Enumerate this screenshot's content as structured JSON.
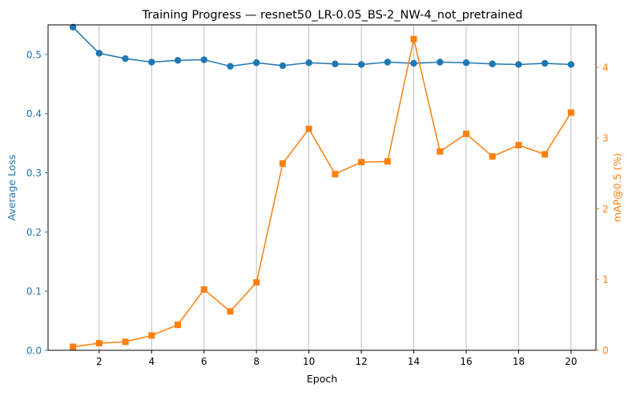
{
  "chart_data": {
    "type": "line",
    "title": "Training Progress — resnet50_LR-0.05_BS-2_NW-4_not_pretrained",
    "xlabel": "Epoch",
    "xlim": [
      0.05,
      20.95
    ],
    "x_ticks": [
      2,
      4,
      6,
      8,
      10,
      12,
      14,
      16,
      18,
      20
    ],
    "x": [
      1,
      2,
      3,
      4,
      5,
      6,
      7,
      8,
      9,
      10,
      11,
      12,
      13,
      14,
      15,
      16,
      17,
      18,
      19,
      20
    ],
    "grid": "vertical lines at x ticks",
    "axes": {
      "left": {
        "label": "Average Loss",
        "range": [
          0.0,
          0.55
        ],
        "ticks": [
          0.0,
          0.1,
          0.2,
          0.3,
          0.4,
          0.5
        ],
        "tick_labels": [
          "0.0",
          "0.1",
          "0.2",
          "0.3",
          "0.4",
          "0.5"
        ],
        "color": "#1f77b4"
      },
      "right": {
        "label": "mAP@0.5 (%)",
        "range": [
          0,
          4.6
        ],
        "ticks": [
          0,
          1,
          2,
          3,
          4
        ],
        "tick_labels": [
          "0",
          "1",
          "2",
          "3",
          "4"
        ],
        "color": "#ff7f0e"
      }
    },
    "series": [
      {
        "axis": "left",
        "marker": "circle",
        "color": "#1f77b4",
        "values": [
          0.546,
          0.502,
          0.493,
          0.487,
          0.49,
          0.491,
          0.48,
          0.486,
          0.481,
          0.486,
          0.484,
          0.483,
          0.487,
          0.485,
          0.487,
          0.486,
          0.484,
          0.483,
          0.485,
          0.483
        ]
      },
      {
        "axis": "right",
        "marker": "square",
        "color": "#ff7f0e",
        "values": [
          0.05,
          0.1,
          0.12,
          0.21,
          0.36,
          0.86,
          0.55,
          0.96,
          2.64,
          3.13,
          2.49,
          2.66,
          2.67,
          4.4,
          2.81,
          3.06,
          2.74,
          2.9,
          2.77,
          3.36
        ]
      }
    ]
  }
}
